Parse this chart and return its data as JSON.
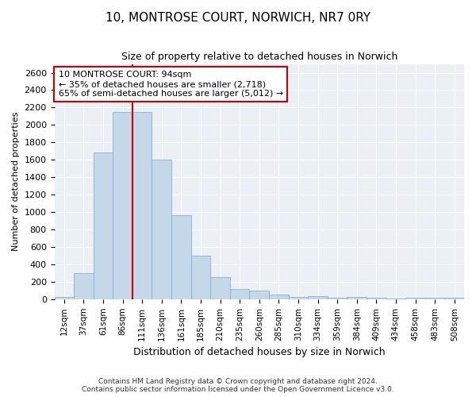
{
  "title": "10, MONTROSE COURT, NORWICH, NR7 0RY",
  "subtitle": "Size of property relative to detached houses in Norwich",
  "xlabel": "Distribution of detached houses by size in Norwich",
  "ylabel": "Number of detached properties",
  "categories": [
    "12sqm",
    "37sqm",
    "61sqm",
    "86sqm",
    "111sqm",
    "136sqm",
    "161sqm",
    "185sqm",
    "210sqm",
    "235sqm",
    "260sqm",
    "285sqm",
    "310sqm",
    "334sqm",
    "359sqm",
    "384sqm",
    "409sqm",
    "434sqm",
    "458sqm",
    "483sqm",
    "508sqm"
  ],
  "values": [
    25,
    300,
    1680,
    2150,
    2150,
    1600,
    960,
    500,
    250,
    120,
    100,
    50,
    30,
    35,
    20,
    25,
    15,
    10,
    15,
    15,
    20
  ],
  "bar_color": "#c5d8ea",
  "bar_edge_color": "#8ab0cc",
  "vline_x": 3.5,
  "vline_color": "#cc0000",
  "annotation_text": "10 MONTROSE COURT: 94sqm\n← 35% of detached houses are smaller (2,718)\n65% of semi-detached houses are larger (5,012) →",
  "annotation_box_color": "#cc0000",
  "ylim": [
    0,
    2700
  ],
  "yticks": [
    0,
    200,
    400,
    600,
    800,
    1000,
    1200,
    1400,
    1600,
    1800,
    2000,
    2200,
    2400,
    2600
  ],
  "background_color": "#eaf0f6",
  "footer_line1": "Contains HM Land Registry data © Crown copyright and database right 2024.",
  "footer_line2": "Contains public sector information licensed under the Open Government Licence v3.0.",
  "title_fontsize": 11,
  "subtitle_fontsize": 9,
  "ylabel_fontsize": 8,
  "xlabel_fontsize": 9,
  "tick_fontsize": 8,
  "xtick_fontsize": 7.5,
  "annotation_fontsize": 8,
  "footer_fontsize": 6.5
}
